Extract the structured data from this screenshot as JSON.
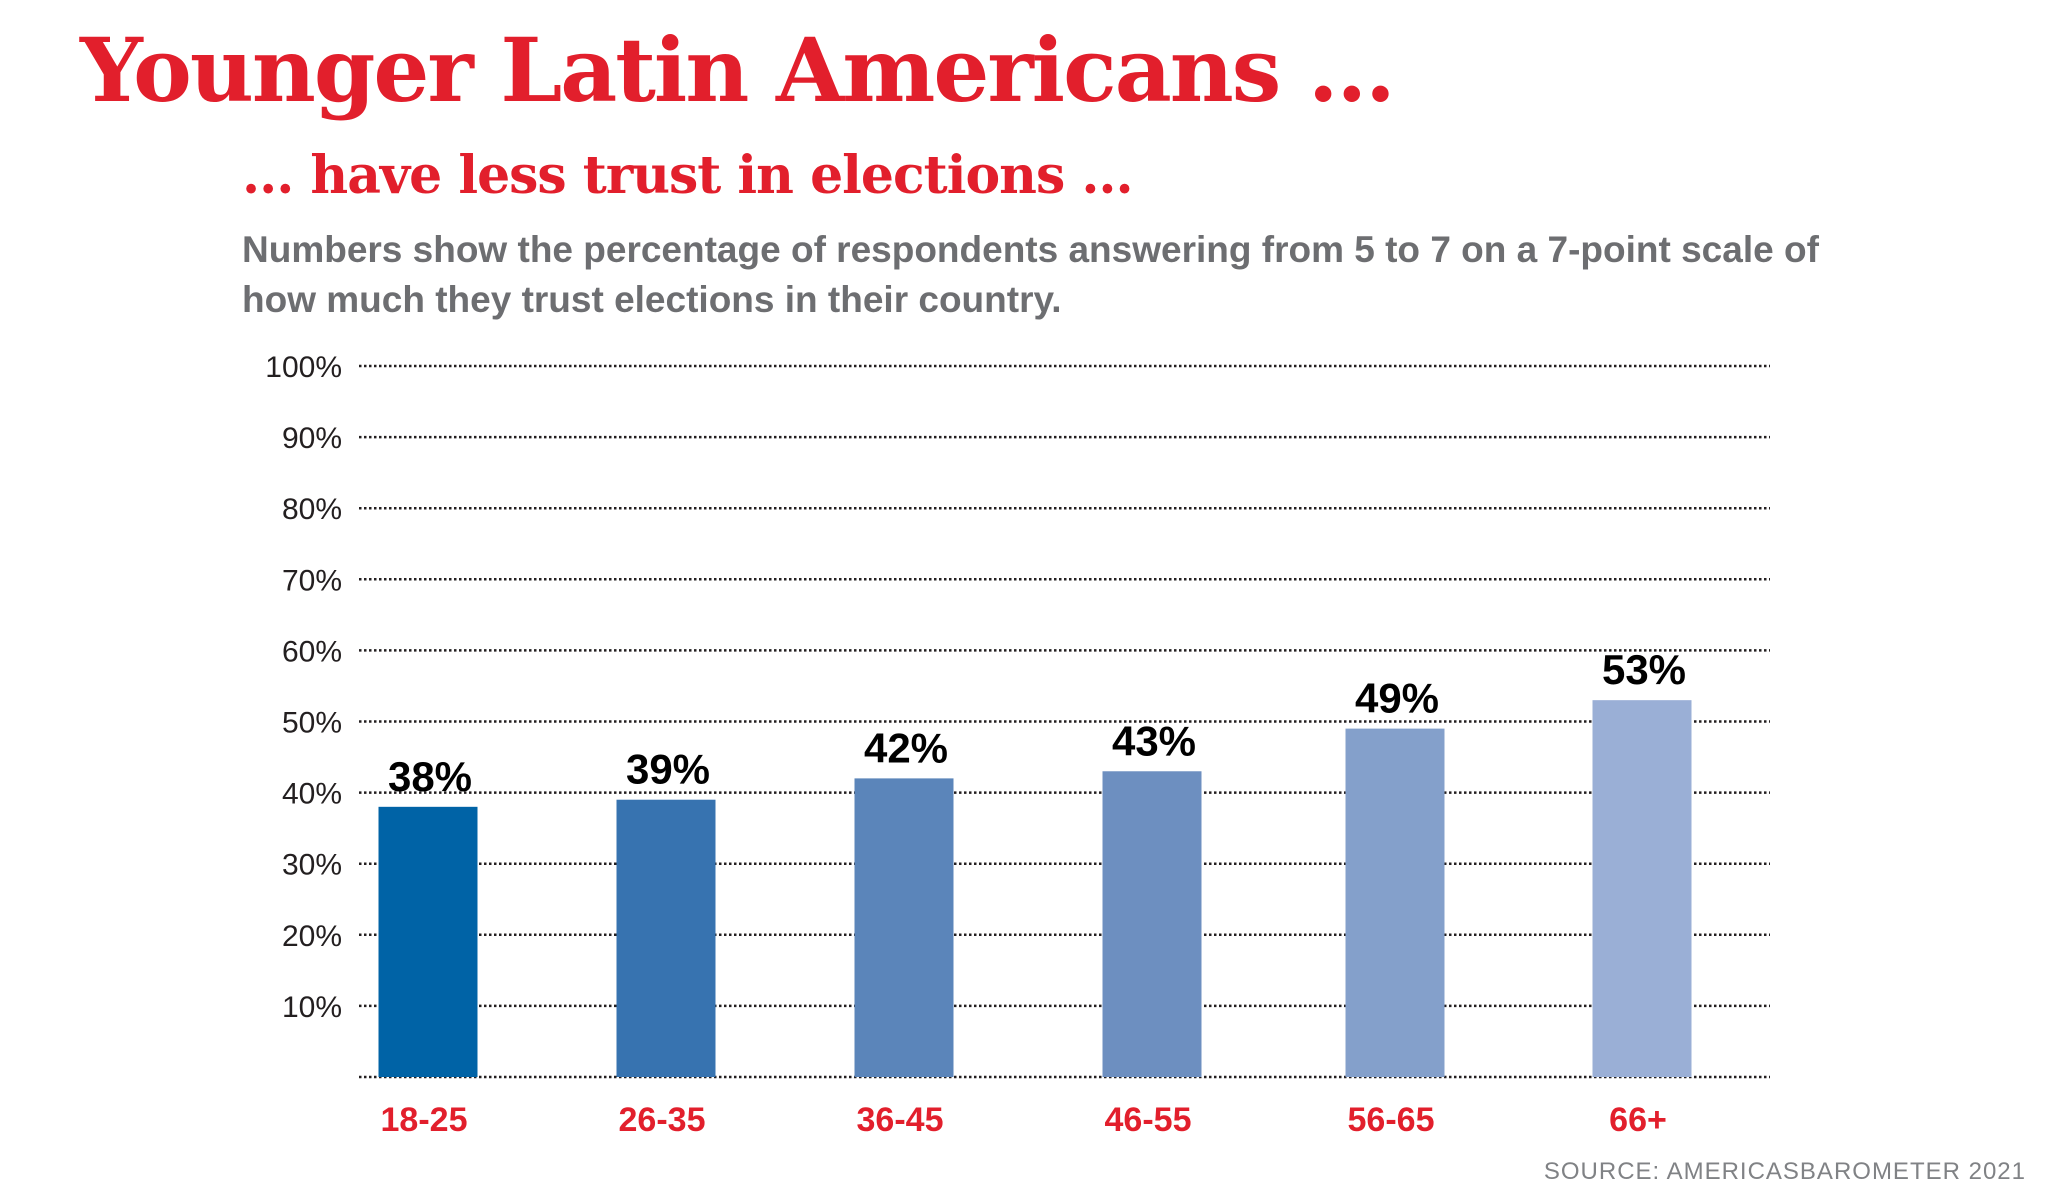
{
  "chart_data": {
    "type": "bar",
    "title": "Younger Latin Americans ...",
    "subtitle": "... have less trust in elections ...",
    "description": "Numbers show the percentage of respondents answering from 5 to 7 on a 7-point scale of how much they trust elections in their country.",
    "categories": [
      "18-25",
      "26-35",
      "36-45",
      "46-55",
      "56-65",
      "66+"
    ],
    "values": [
      38,
      39,
      42,
      43,
      49,
      53
    ],
    "value_labels": [
      "38%",
      "39%",
      "42%",
      "43%",
      "49%",
      "53%"
    ],
    "colors": [
      "#0063a6",
      "#3773b0",
      "#5b85ba",
      "#6d8fc0",
      "#84a0cb",
      "#9aafd6"
    ],
    "yticks": [
      10,
      20,
      30,
      40,
      50,
      60,
      70,
      80,
      90,
      100
    ],
    "ytick_labels": [
      "10%",
      "20%",
      "30%",
      "40%",
      "50%",
      "60%",
      "70%",
      "80%",
      "90%",
      "100%"
    ],
    "ylim": [
      0,
      100
    ],
    "grid": true,
    "xlabel": "",
    "ylabel": "",
    "source": "SOURCE: AMERICASBAROMETER 2021"
  }
}
